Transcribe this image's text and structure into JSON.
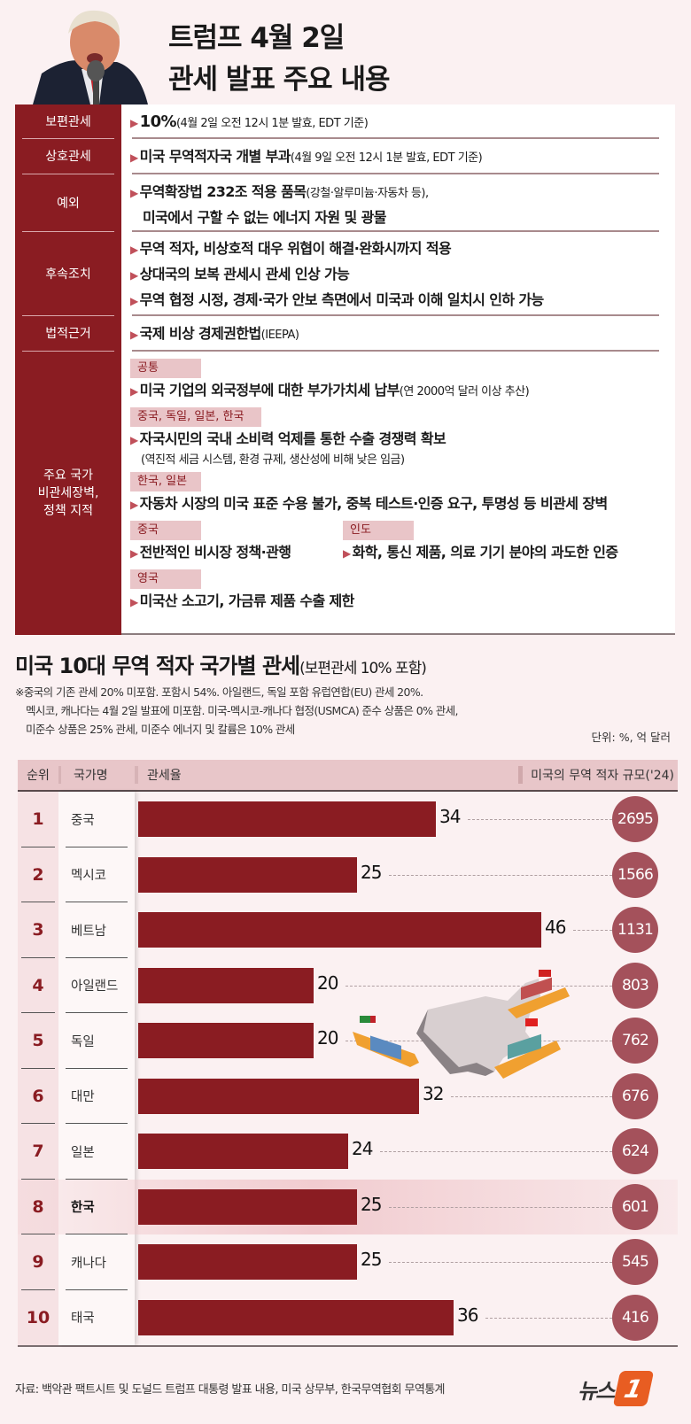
{
  "header": {
    "title_line1": "트럼프 4월 2일",
    "title_line2": "관세 발표 주요 내용"
  },
  "policy": {
    "rows": [
      {
        "label": "보편관세",
        "bullets": [
          {
            "main": "10%",
            "sub": "(4월 2일 오전 12시 1분 발효, EDT 기준)"
          }
        ]
      },
      {
        "label": "상호관세",
        "bullets": [
          {
            "main": "미국 무역적자국 개별 부과",
            "sub": "(4월 9일 오전 12시 1분 발효, EDT 기준)"
          }
        ]
      },
      {
        "label": "예외",
        "bullets": [
          {
            "main": "무역확장법 232조 적용 품목",
            "sub": "(강철·알루미늄·자동차 등),"
          }
        ],
        "continuation": "미국에서 구할 수 없는 에너지 자원 및 광물"
      },
      {
        "label": "후속조치",
        "bullets": [
          {
            "main": "무역 적자, 비상호적 대우 위협이 해결·완화시까지 적용"
          },
          {
            "main": "상대국의 보복 관세시 관세 인상 가능"
          },
          {
            "main": "무역 협정 시정, 경제·국가 안보 측면에서 미국과 이해 일치시 인하 가능"
          }
        ]
      },
      {
        "label": "법적근거",
        "bullets": [
          {
            "main": "국제 비상 경제권한법",
            "sub": "(IEEPA)"
          }
        ]
      }
    ],
    "barriers": {
      "label_line1": "주요 국가",
      "label_line2": "비관세장벽,",
      "label_line3": "정책 지적",
      "groups": [
        {
          "tag": "공통",
          "main": "미국 기업의 외국정부에 대한 부가가치세 납부",
          "sub": "(연 2000억 달러 이상 추산)"
        },
        {
          "tag": "중국, 독일, 일본, 한국",
          "main": "자국시민의 국내 소비력 억제를 통한 수출 경쟁력 확보",
          "detail": "(역진적 세금 시스템, 환경 규제, 생산성에 비해 낮은 임금)"
        },
        {
          "tag": "한국, 일본",
          "main": "자동차 시장의 미국 표준 수용 불가, 중복 테스트·인증 요구, 투명성 등 비관세 장벽"
        },
        {
          "tag": "중국",
          "main": "전반적인 비시장 정책·관행"
        },
        {
          "tag": "인도",
          "main": "화학, 통신 제품, 의료 기기 분야의 과도한 인증"
        },
        {
          "tag": "영국",
          "main": "미국산 소고기, 가금류 제품 수출 제한"
        }
      ]
    }
  },
  "section2": {
    "title": "미국 10대 무역 적자 국가별 관세",
    "title_paren": "(보편관세 10% 포함)",
    "note1": "※중국의 기존 관세 20% 미포함. 포함시 54%. 아일랜드, 독일 포함 유럽연합(EU) 관세 20%.",
    "note2": "멕시코, 캐나다는 4월 2일 발표에 미포함. 미국-멕시코-캐나다 협정(USMCA) 준수 상품은 0% 관세,",
    "note3": "미준수 상품은 25% 관세, 미준수 에너지 및 칼륨은 10% 관세",
    "unit": "단위: %, 억 달러"
  },
  "table_header": {
    "rank": "순위",
    "country": "국가명",
    "tariff": "관세율",
    "deficit": "미국의 무역 적자 규모('24)"
  },
  "chart_data": {
    "type": "bar",
    "title": "미국 10대 무역 적자 국가별 관세(보편관세 10% 포함)",
    "xlabel": "관세율 (%)",
    "ylabel": "국가명",
    "orientation": "horizontal",
    "categories": [
      "중국",
      "멕시코",
      "베트남",
      "아일랜드",
      "독일",
      "대만",
      "일본",
      "한국",
      "캐나다",
      "태국"
    ],
    "ranks": [
      1,
      2,
      3,
      4,
      5,
      6,
      7,
      8,
      9,
      10
    ],
    "series": [
      {
        "name": "관세율",
        "unit": "%",
        "values": [
          34,
          25,
          46,
          20,
          20,
          32,
          24,
          25,
          25,
          36
        ]
      },
      {
        "name": "미국의 무역 적자 규모('24)",
        "unit": "억 달러",
        "values": [
          2695,
          1566,
          1131,
          803,
          762,
          676,
          624,
          601,
          545,
          416
        ]
      }
    ],
    "highlight": "한국",
    "bar_color": "#8a1c22",
    "circle_color": "#a4515b"
  },
  "footer": {
    "source": "자료: 백악관 팩트시트 및 도널드 트럼프 대통령 발표 내용, 미국 상무부, 한국무역협회 무역통계",
    "logo_text": "뉴스",
    "logo_num": "1"
  }
}
